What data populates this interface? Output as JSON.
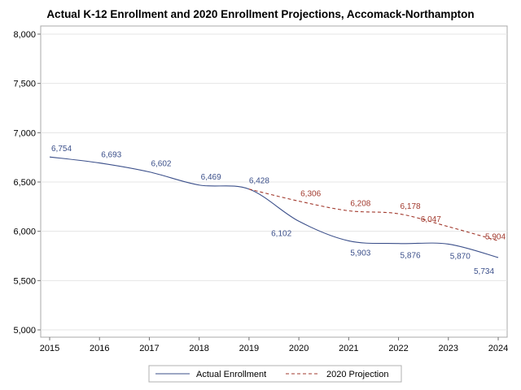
{
  "chart_data": {
    "type": "line",
    "title": "Actual K-12 Enrollment and 2020 Enrollment Projections, Accomack-Northampton",
    "xlabel": "",
    "ylabel": "",
    "xlim": [
      2015,
      2024
    ],
    "ylim": [
      5000,
      8000
    ],
    "x_ticks": [
      "2015",
      "2016",
      "2017",
      "2018",
      "2019",
      "2020",
      "2021",
      "2022",
      "2023",
      "2024"
    ],
    "y_ticks": [
      {
        "value": 5000,
        "label": "5,000"
      },
      {
        "value": 5500,
        "label": "5,500"
      },
      {
        "value": 6000,
        "label": "6,000"
      },
      {
        "value": 6500,
        "label": "6,500"
      },
      {
        "value": 7000,
        "label": "7,000"
      },
      {
        "value": 7500,
        "label": "7,500"
      },
      {
        "value": 8000,
        "label": "8,000"
      }
    ],
    "grid": true,
    "legend_position": "bottom",
    "series": [
      {
        "name": "Actual Enrollment",
        "color": "#3b4f8a",
        "style": "solid",
        "points": [
          {
            "x": 2015,
            "y": 6754,
            "label": "6,754"
          },
          {
            "x": 2016,
            "y": 6693,
            "label": "6,693"
          },
          {
            "x": 2017,
            "y": 6602,
            "label": "6,602"
          },
          {
            "x": 2018,
            "y": 6469,
            "label": "6,469"
          },
          {
            "x": 2019,
            "y": 6428,
            "label": "6,428"
          },
          {
            "x": 2020,
            "y": 6102,
            "label": "6,102"
          },
          {
            "x": 2021,
            "y": 5903,
            "label": "5,903"
          },
          {
            "x": 2022,
            "y": 5876,
            "label": "5,876"
          },
          {
            "x": 2023,
            "y": 5870,
            "label": "5,870"
          },
          {
            "x": 2024,
            "y": 5734,
            "label": "5,734"
          }
        ]
      },
      {
        "name": "2020 Projection",
        "color": "#a23a2e",
        "style": "dashed",
        "points": [
          {
            "x": 2019,
            "y": 6428,
            "label": ""
          },
          {
            "x": 2020,
            "y": 6306,
            "label": "6,306"
          },
          {
            "x": 2021,
            "y": 6208,
            "label": "6,208"
          },
          {
            "x": 2022,
            "y": 6178,
            "label": "6,178"
          },
          {
            "x": 2023,
            "y": 6047,
            "label": "6,047"
          },
          {
            "x": 2024,
            "y": 5904,
            "label": "5,904"
          }
        ]
      }
    ]
  }
}
